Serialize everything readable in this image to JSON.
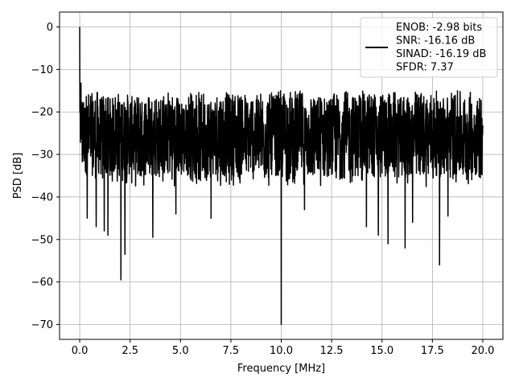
{
  "chart_data": {
    "type": "line",
    "title": "",
    "xlabel": "Frequency [MHz]",
    "ylabel": "PSD [dB]",
    "xlim": [
      -1.0,
      21.0
    ],
    "ylim": [
      -73.5,
      3.5
    ],
    "xticks": [
      0.0,
      2.5,
      5.0,
      7.5,
      10.0,
      12.5,
      15.0,
      17.5,
      20.0
    ],
    "xtick_labels": [
      "0.0",
      "2.5",
      "5.0",
      "7.5",
      "10.0",
      "12.5",
      "15.0",
      "17.5",
      "20.0"
    ],
    "yticks": [
      0,
      -10,
      -20,
      -30,
      -40,
      -50,
      -60,
      -70
    ],
    "ytick_labels": [
      "0",
      "−10",
      "−20",
      "−30",
      "−40",
      "−50",
      "−60",
      "−70"
    ],
    "grid": true,
    "legend_position": "top-right",
    "legend_lines": [
      "ENOB: -2.98 bits",
      "SNR: -16.16 dB",
      "SINAD: -16.19 dB",
      "SFDR: 7.37"
    ],
    "series": [
      {
        "color": "#000000",
        "noise_floor_range_db": [
          -35,
          -15
        ],
        "peak": {
          "x": 0.0,
          "y": 0.0
        },
        "dips": [
          {
            "x": 0.37,
            "y": -45
          },
          {
            "x": 0.82,
            "y": -47
          },
          {
            "x": 1.22,
            "y": -48
          },
          {
            "x": 1.4,
            "y": -49
          },
          {
            "x": 2.05,
            "y": -59.5
          },
          {
            "x": 2.25,
            "y": -53.5
          },
          {
            "x": 3.63,
            "y": -49.5
          },
          {
            "x": 4.77,
            "y": -44
          },
          {
            "x": 6.52,
            "y": -45
          },
          {
            "x": 10.0,
            "y": -70
          },
          {
            "x": 11.15,
            "y": -43
          },
          {
            "x": 14.23,
            "y": -47
          },
          {
            "x": 14.82,
            "y": -49
          },
          {
            "x": 15.3,
            "y": -51
          },
          {
            "x": 16.15,
            "y": -52
          },
          {
            "x": 16.52,
            "y": -46
          },
          {
            "x": 17.85,
            "y": -56
          },
          {
            "x": 18.27,
            "y": -44.5
          }
        ]
      }
    ]
  }
}
